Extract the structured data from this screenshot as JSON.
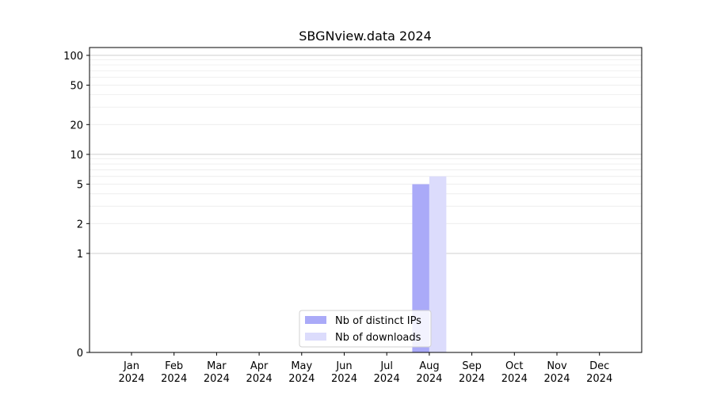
{
  "chart_data": {
    "type": "bar",
    "title": "SBGNview.data 2024",
    "xlabel": "",
    "ylabel": "",
    "yscale": "symlog",
    "ylim": [
      0,
      120
    ],
    "yticks": [
      0,
      1,
      2,
      5,
      10,
      20,
      50,
      100
    ],
    "major_gridlines": [
      1,
      10,
      100
    ],
    "minor_gridlines": [
      2,
      3,
      4,
      5,
      6,
      7,
      8,
      9,
      20,
      30,
      40,
      50,
      60,
      70,
      80,
      90
    ],
    "categories": [
      {
        "month": "Jan",
        "year": "2024"
      },
      {
        "month": "Feb",
        "year": "2024"
      },
      {
        "month": "Mar",
        "year": "2024"
      },
      {
        "month": "Apr",
        "year": "2024"
      },
      {
        "month": "May",
        "year": "2024"
      },
      {
        "month": "Jun",
        "year": "2024"
      },
      {
        "month": "Jul",
        "year": "2024"
      },
      {
        "month": "Aug",
        "year": "2024"
      },
      {
        "month": "Sep",
        "year": "2024"
      },
      {
        "month": "Oct",
        "year": "2024"
      },
      {
        "month": "Nov",
        "year": "2024"
      },
      {
        "month": "Dec",
        "year": "2024"
      }
    ],
    "series": [
      {
        "name": "Nb of distinct IPs",
        "color": "#aaaaf8",
        "values": [
          0,
          0,
          0,
          0,
          0,
          0,
          0,
          5,
          0,
          0,
          0,
          0
        ]
      },
      {
        "name": "Nb of downloads",
        "color": "#dcdcfc",
        "values": [
          0,
          0,
          0,
          0,
          0,
          0,
          0,
          6,
          0,
          0,
          0,
          0
        ]
      }
    ],
    "legend_position": "lower-center"
  }
}
